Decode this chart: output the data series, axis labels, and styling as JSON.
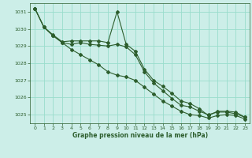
{
  "xlabel": "Graphe pression niveau de la mer (hPa)",
  "background_color": "#cceee8",
  "grid_color": "#99ddcc",
  "line_color": "#2d5e2d",
  "xlim": [
    -0.5,
    23.5
  ],
  "ylim": [
    1024.5,
    1031.5
  ],
  "yticks": [
    1025,
    1026,
    1027,
    1028,
    1029,
    1030,
    1031
  ],
  "xticks": [
    0,
    1,
    2,
    3,
    4,
    5,
    6,
    7,
    8,
    9,
    10,
    11,
    12,
    13,
    14,
    15,
    16,
    17,
    18,
    19,
    20,
    21,
    22,
    23
  ],
  "line1_x": [
    0,
    1,
    2,
    3,
    4,
    5,
    6,
    7,
    8,
    9,
    10,
    11,
    12,
    13,
    14,
    15,
    16,
    17,
    18,
    19,
    20,
    21,
    22,
    23
  ],
  "line1_y": [
    1031.2,
    1030.1,
    1029.65,
    1029.25,
    1029.3,
    1029.3,
    1029.3,
    1029.3,
    1029.2,
    1031.0,
    1029.1,
    1028.7,
    1027.65,
    1027.0,
    1026.65,
    1026.25,
    1025.8,
    1025.65,
    1025.35,
    1024.95,
    1025.2,
    1025.2,
    1025.15,
    1024.85
  ],
  "line2_x": [
    0,
    1,
    2,
    3,
    4,
    5,
    6,
    7,
    8,
    9,
    10,
    11,
    12,
    13,
    14,
    15,
    16,
    17,
    18,
    19,
    20,
    21,
    22,
    23
  ],
  "line2_y": [
    1031.2,
    1030.1,
    1029.6,
    1029.2,
    1029.1,
    1029.2,
    1029.1,
    1029.05,
    1029.0,
    1029.1,
    1028.95,
    1028.5,
    1027.5,
    1026.85,
    1026.4,
    1025.95,
    1025.55,
    1025.45,
    1025.2,
    1025.0,
    1025.15,
    1025.15,
    1025.05,
    1024.85
  ],
  "line3_x": [
    0,
    1,
    2,
    3,
    4,
    5,
    6,
    7,
    8,
    9,
    10,
    11,
    12,
    13,
    14,
    15,
    16,
    17,
    18,
    19,
    20,
    21,
    22,
    23
  ],
  "line3_y": [
    1031.2,
    1030.1,
    1029.6,
    1029.2,
    1028.8,
    1028.5,
    1028.2,
    1027.9,
    1027.5,
    1027.3,
    1027.2,
    1027.0,
    1026.6,
    1026.2,
    1025.8,
    1025.5,
    1025.2,
    1025.0,
    1024.95,
    1024.8,
    1024.95,
    1025.0,
    1024.95,
    1024.75
  ]
}
